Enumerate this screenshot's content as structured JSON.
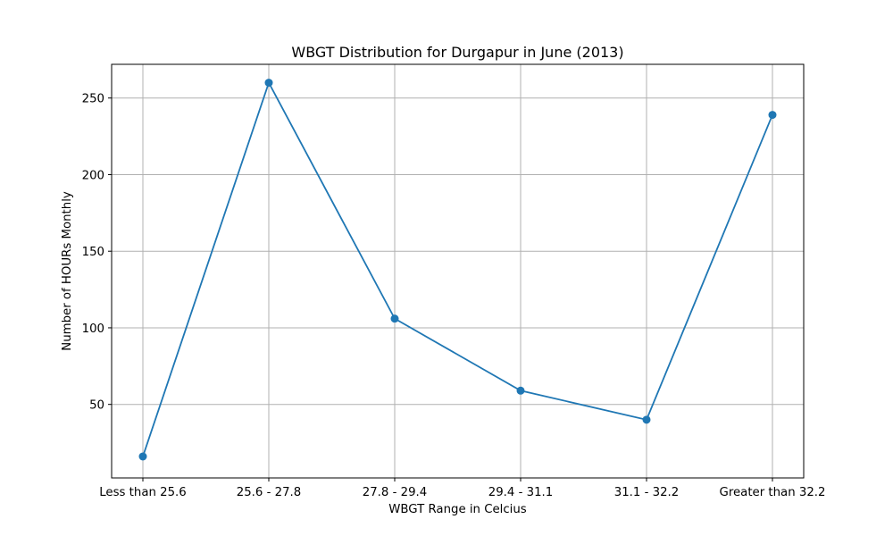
{
  "chart_data": {
    "type": "line",
    "title": "WBGT Distribution for Durgapur in June (2013)",
    "xlabel": "WBGT Range in Celcius",
    "ylabel": "Number of HOURs Monthly",
    "categories": [
      "Less than 25.6",
      "25.6 - 27.8",
      "27.8 - 29.4",
      "29.4 - 31.1",
      "31.1 - 32.2",
      "Greater than 32.2"
    ],
    "series": [
      {
        "values": [
          16,
          260,
          106,
          59,
          40,
          239
        ]
      }
    ],
    "ylim": [
      2,
      272
    ],
    "yticks": [
      50,
      100,
      150,
      200,
      250
    ],
    "grid": true,
    "marker": "circle",
    "colors": {
      "line": "#1f77b4",
      "grid": "#b0b0b0",
      "axis": "#000000"
    }
  }
}
